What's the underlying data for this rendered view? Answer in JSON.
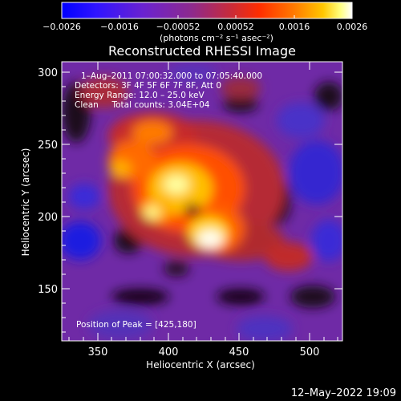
{
  "colorbar": {
    "ticks": [
      "−0.0026",
      "−0.0016",
      "−0.00052",
      "0.00052",
      "0.0016",
      "0.0026"
    ],
    "units": "(photons cm⁻² s⁻¹ asec⁻²)",
    "colors": [
      "#0000ff",
      "#3a14ff",
      "#6a22d0",
      "#8e2a8c",
      "#c72b3b",
      "#ff2d00",
      "#ff7a00",
      "#ffc600",
      "#ffff80",
      "#ffffff"
    ]
  },
  "image": {
    "title": "Reconstructed RHESSI Image",
    "info_lines": [
      "1–Aug–2011 07:00:32.000 to 07:05:40.000",
      "Detectors: 3F 4F 5F 6F 7F 8F, Att 0",
      "Energy Range: 12.0 – 25.0 keV",
      "Clean     Total counts: 3.04E+04"
    ],
    "peak_text": "Position of Peak = [425,180]",
    "xlabel": "Heliocentric X (arcsec)",
    "ylabel": "Heliocentric Y (arcsec)",
    "xticks": [
      "350",
      "400",
      "450",
      "500"
    ],
    "yticks": [
      "150",
      "200",
      "250",
      "300"
    ],
    "xlim": [
      325,
      515
    ],
    "ylim": [
      115,
      308
    ],
    "peak": [
      425,
      180
    ]
  },
  "footer": {
    "timestamp": "12–May–2022 19:09"
  }
}
